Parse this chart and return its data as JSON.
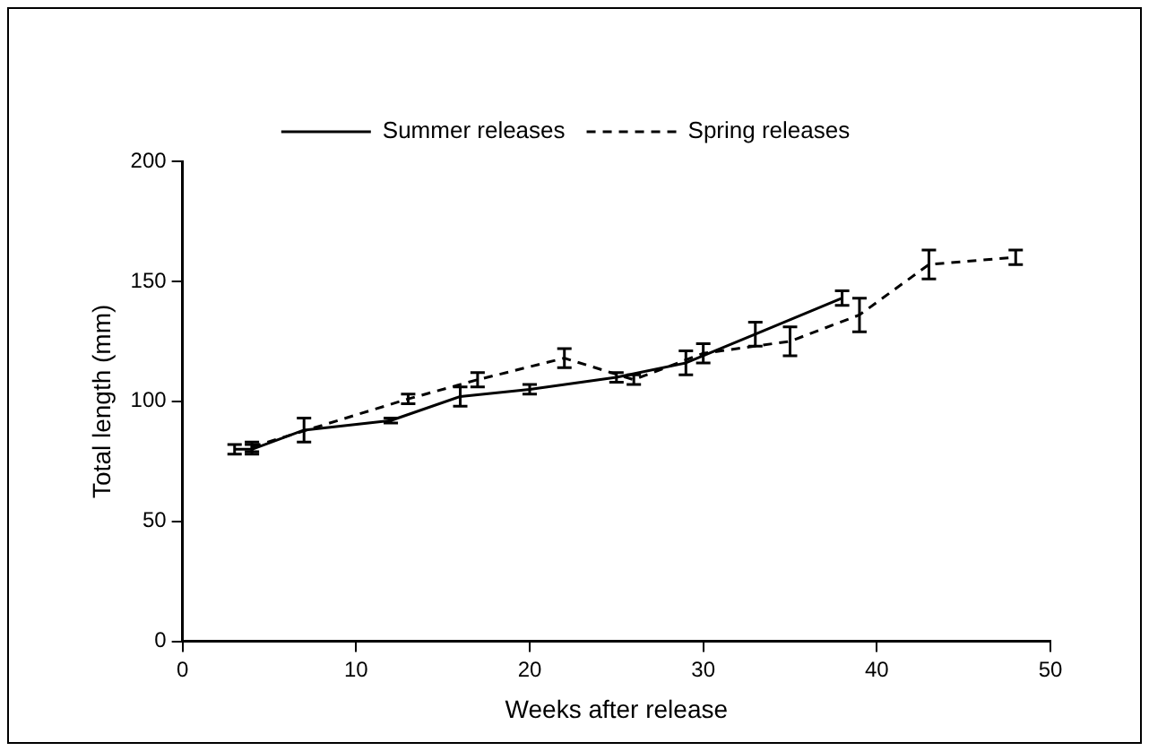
{
  "chart_data": {
    "type": "line",
    "xlabel": "Weeks after release",
    "ylabel": "Total length (mm)",
    "xlim": [
      0,
      50
    ],
    "xticks": [
      0,
      10,
      20,
      30,
      40,
      50
    ],
    "ylim": [
      0,
      200
    ],
    "yticks": [
      0,
      50,
      100,
      150,
      200
    ],
    "grid": false,
    "legend": "top",
    "series": [
      {
        "name": "Summer releases",
        "color": "#000000",
        "line_style": "solid",
        "x": [
          3,
          4,
          7,
          12,
          16,
          20,
          25,
          29,
          33,
          38
        ],
        "values": [
          80,
          80,
          88,
          92,
          102,
          105,
          110,
          116,
          128,
          143
        ],
        "errors": [
          2,
          2,
          5,
          1,
          4,
          2,
          2,
          5,
          5,
          3
        ]
      },
      {
        "name": "Spring releases",
        "color": "#000000",
        "line_style": "dashed",
        "x": [
          4,
          13,
          17,
          22,
          26,
          30,
          35,
          39,
          43,
          48
        ],
        "values": [
          81,
          101,
          109,
          118,
          109,
          120,
          125,
          136,
          157,
          160
        ],
        "errors": [
          2,
          2,
          3,
          4,
          2,
          4,
          6,
          7,
          6,
          3
        ]
      }
    ]
  }
}
